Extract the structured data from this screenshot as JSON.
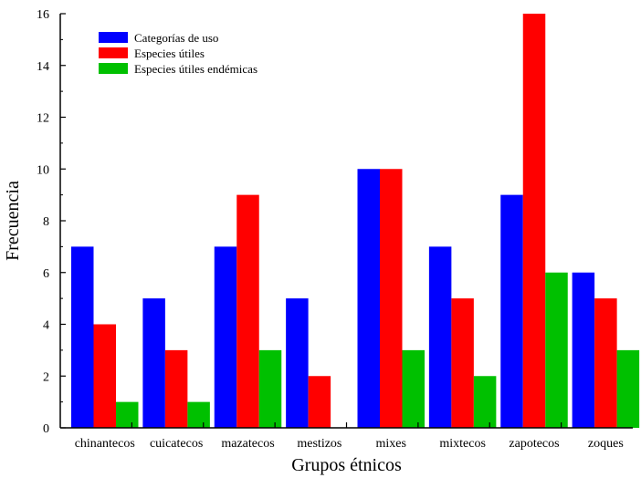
{
  "chart_data": {
    "type": "bar",
    "title": "",
    "xlabel": "Grupos étnicos",
    "ylabel": "Frecuencia",
    "ylim": [
      0,
      16
    ],
    "yticks": [
      "0",
      "2",
      "4",
      "6",
      "8",
      "10",
      "12",
      "14",
      "16"
    ],
    "categories": [
      "chinantecos",
      "cuicatecos",
      "mazatecos",
      "mestizos",
      "mixes",
      "mixtecos",
      "zapotecos",
      "zoques"
    ],
    "series": [
      {
        "name": "Categorías de uso",
        "color": "#0000ff",
        "values": [
          7,
          5,
          7,
          5,
          10,
          7,
          9,
          6
        ]
      },
      {
        "name": "Especies útiles",
        "color": "#ff0000",
        "values": [
          4,
          3,
          9,
          2,
          10,
          5,
          16,
          5
        ]
      },
      {
        "name": "Especies útiles endémicas",
        "color": "#00c000",
        "values": [
          1,
          1,
          3,
          0,
          3,
          2,
          6,
          3
        ]
      }
    ],
    "legend_position": "top-left",
    "grid": false
  }
}
